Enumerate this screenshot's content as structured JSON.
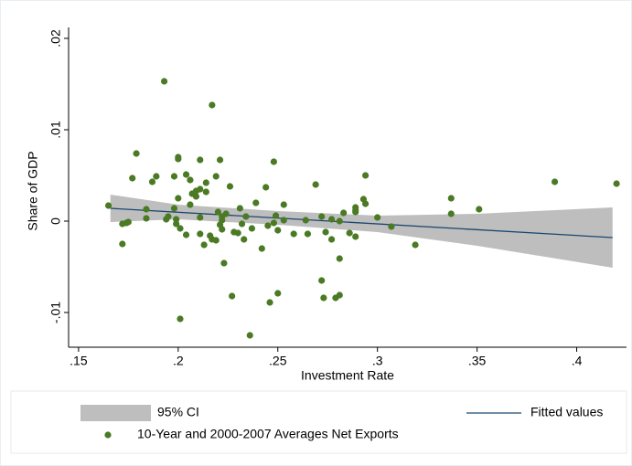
{
  "chart_data": {
    "type": "scatter",
    "x_label": "Investment Rate",
    "y_label": "Share of GDP",
    "xlim": [
      0.145,
      0.425
    ],
    "ylim": [
      -0.0138,
      0.0212
    ],
    "xticks": [
      {
        "value": 0.15,
        "label": ".15"
      },
      {
        "value": 0.2,
        "label": ".2"
      },
      {
        "value": 0.25,
        "label": ".25"
      },
      {
        "value": 0.3,
        "label": ".3"
      },
      {
        "value": 0.35,
        "label": ".35"
      },
      {
        "value": 0.4,
        "label": ".4"
      }
    ],
    "yticks": [
      {
        "value": -0.01,
        "label": "-.01"
      },
      0,
      {
        "value": 0.01,
        "label": ".01"
      },
      {
        "value": 0.02,
        "label": ".02"
      }
    ],
    "grid": false,
    "series": [
      {
        "name": "95% CI",
        "type": "band",
        "color": "#bebebe",
        "x": [
          0.166,
          0.2,
          0.25,
          0.3,
          0.35,
          0.418
        ],
        "upper": [
          0.0029,
          0.0018,
          0.0011,
          0.0006,
          0.0008,
          0.0015
        ],
        "lower": [
          -0.0001,
          0.0002,
          -0.0004,
          -0.0012,
          -0.0027,
          -0.0051
        ]
      },
      {
        "name": "Fitted values",
        "type": "line",
        "color": "#1a476f",
        "x": [
          0.166,
          0.418
        ],
        "values": [
          0.0014,
          -0.0018
        ]
      },
      {
        "name": "10-Year and 2000-2007 Averages Net Exports",
        "type": "scatter",
        "color": "#4a7a24",
        "x": [
          0.165,
          0.172,
          0.172,
          0.174,
          0.175,
          0.177,
          0.179,
          0.184,
          0.184,
          0.187,
          0.189,
          0.193,
          0.194,
          0.195,
          0.198,
          0.198,
          0.199,
          0.199,
          0.2,
          0.2,
          0.2,
          0.201,
          0.201,
          0.204,
          0.204,
          0.206,
          0.206,
          0.207,
          0.209,
          0.209,
          0.211,
          0.211,
          0.211,
          0.211,
          0.214,
          0.214,
          0.213,
          0.216,
          0.217,
          0.217,
          0.219,
          0.219,
          0.22,
          0.221,
          0.221,
          0.222,
          0.222,
          0.222,
          0.223,
          0.224,
          0.226,
          0.227,
          0.228,
          0.23,
          0.231,
          0.232,
          0.233,
          0.234,
          0.236,
          0.237,
          0.239,
          0.242,
          0.244,
          0.245,
          0.246,
          0.248,
          0.248,
          0.249,
          0.25,
          0.25,
          0.253,
          0.253,
          0.258,
          0.264,
          0.265,
          0.269,
          0.272,
          0.272,
          0.273,
          0.274,
          0.277,
          0.277,
          0.279,
          0.281,
          0.281,
          0.281,
          0.283,
          0.286,
          0.289,
          0.289,
          0.289,
          0.289,
          0.293,
          0.294,
          0.294,
          0.3,
          0.307,
          0.319,
          0.337,
          0.337,
          0.351,
          0.389,
          0.42
        ],
        "values": [
          0.0017,
          -0.0003,
          -0.0025,
          -0.0002,
          -0.0001,
          0.0047,
          0.0074,
          0.0013,
          0.0003,
          0.0043,
          0.0049,
          0.0153,
          0.0002,
          0.0005,
          0.0049,
          0.0014,
          0.0002,
          -0.0003,
          0.007,
          0.0068,
          0.0025,
          -0.0008,
          -0.0107,
          -0.0015,
          0.0051,
          0.0045,
          0.0018,
          0.003,
          0.0033,
          0.0027,
          0.0067,
          0.0004,
          0.0035,
          -0.0014,
          0.0042,
          0.0032,
          -0.0026,
          -0.0016,
          0.0127,
          -0.002,
          0.0049,
          -0.0021,
          0.001,
          0.0067,
          -0.0004,
          0.0005,
          0.0001,
          -0.0009,
          -0.0046,
          0.0008,
          0.0038,
          -0.0082,
          -0.0012,
          -0.0013,
          0.0014,
          -0.0003,
          -0.002,
          0.0005,
          -0.0125,
          -0.0008,
          0.002,
          -0.003,
          0.0037,
          -0.0005,
          -0.0089,
          -0.0002,
          0.0065,
          0.0006,
          -0.001,
          -0.0079,
          0.0018,
          0.0001,
          -0.0014,
          0.0001,
          -0.0014,
          0.004,
          0.0005,
          -0.0065,
          -0.0084,
          -0.0012,
          -0.002,
          0.0002,
          -0.0084,
          -0.0081,
          -0.0041,
          0,
          0.0009,
          -0.0013,
          0.0015,
          0.001,
          -0.0017,
          0.0012,
          0.0024,
          0.0019,
          0.005,
          0.0004,
          -0.0006,
          -0.0026,
          0.0025,
          0.0008,
          0.0013,
          0.0043,
          0.0041
        ]
      }
    ]
  }
}
